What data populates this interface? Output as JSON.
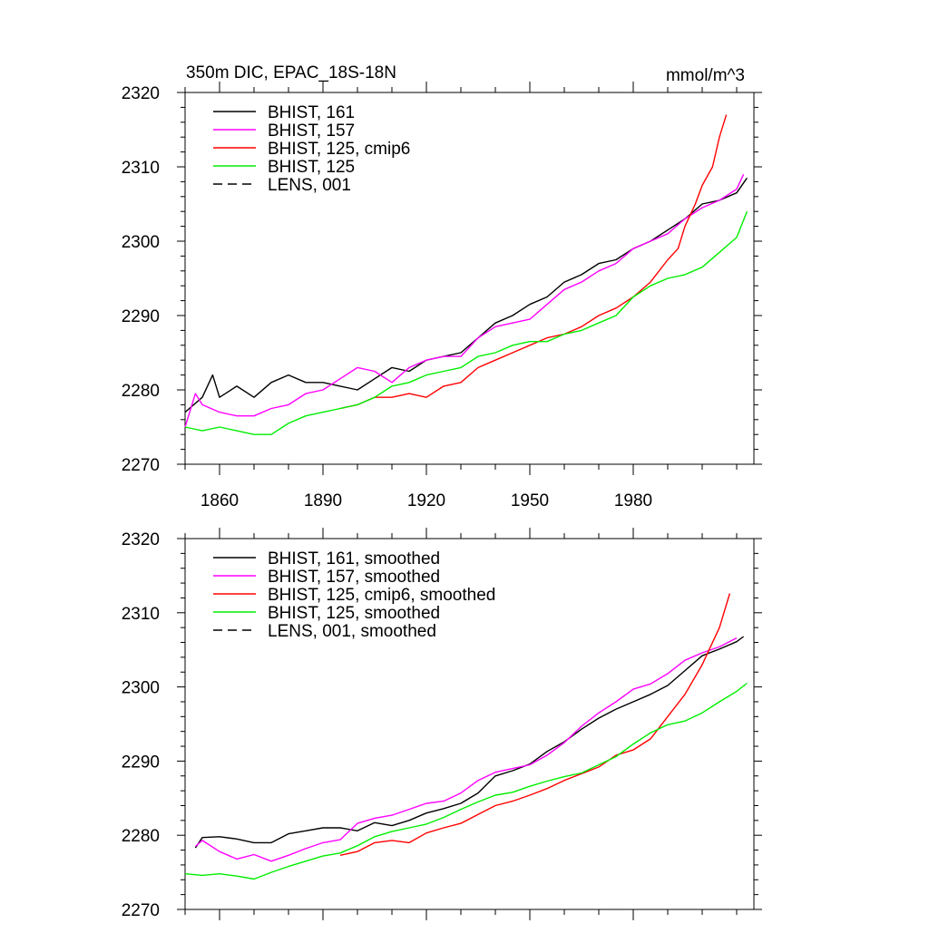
{
  "chart_data": [
    {
      "type": "line",
      "title": "350m DIC, EPAC_18S-18N",
      "units_label": "mmol/m^3",
      "xlim": [
        1850,
        2015
      ],
      "ylim": [
        2270,
        2320
      ],
      "yticks": [
        2270,
        2280,
        2290,
        2300,
        2310,
        2320
      ],
      "yticklabels": [
        "2270",
        "2280",
        "2290",
        "2300",
        "2310",
        "2320"
      ],
      "xticks": [
        1860,
        1890,
        1920,
        1950,
        1980
      ],
      "xticklabels": [
        "1860",
        "1890",
        "1920",
        "1950",
        "1980"
      ],
      "xminor": [
        1850,
        1870,
        1880,
        1900,
        1910,
        1930,
        1940,
        1960,
        1970,
        1990,
        2000,
        2010
      ],
      "legend_position": "top-left",
      "series": [
        {
          "name": "BHIST, 161",
          "color": "#000000",
          "dash": "solid",
          "show_line": true,
          "x": [
            1850,
            1855,
            1858,
            1860,
            1865,
            1870,
            1875,
            1880,
            1885,
            1890,
            1895,
            1900,
            1905,
            1910,
            1915,
            1920,
            1925,
            1930,
            1935,
            1940,
            1945,
            1950,
            1955,
            1960,
            1965,
            1970,
            1975,
            1980,
            1985,
            1990,
            1995,
            2000,
            2005,
            2010,
            2013
          ],
          "y": [
            2277.0,
            2279.0,
            2282.0,
            2279.0,
            2280.5,
            2279.0,
            2281.0,
            2282.0,
            2281.0,
            2281.0,
            2280.5,
            2280.0,
            2281.5,
            2283.0,
            2282.5,
            2284.0,
            2284.5,
            2285.0,
            2287.0,
            2289.0,
            2290.0,
            2291.5,
            2292.5,
            2294.5,
            2295.5,
            2297.0,
            2297.5,
            2299.0,
            2300.0,
            2301.5,
            2303.0,
            2305.0,
            2305.5,
            2306.5,
            2308.5
          ]
        },
        {
          "name": "BHIST, 157",
          "color": "#ff00ff",
          "dash": "solid",
          "show_line": true,
          "x": [
            1850,
            1853,
            1855,
            1860,
            1865,
            1870,
            1875,
            1880,
            1885,
            1890,
            1895,
            1900,
            1905,
            1910,
            1915,
            1920,
            1925,
            1930,
            1935,
            1940,
            1945,
            1950,
            1955,
            1960,
            1965,
            1970,
            1975,
            1980,
            1985,
            1990,
            1995,
            2000,
            2005,
            2010,
            2012
          ],
          "y": [
            2275.0,
            2279.5,
            2278.0,
            2277.0,
            2276.5,
            2276.5,
            2277.5,
            2278.0,
            2279.5,
            2280.0,
            2281.5,
            2283.0,
            2282.5,
            2281.0,
            2283.0,
            2284.0,
            2284.5,
            2284.5,
            2287.0,
            2288.5,
            2289.0,
            2289.5,
            2291.5,
            2293.5,
            2294.5,
            2296.0,
            2297.0,
            2299.0,
            2300.0,
            2301.0,
            2303.0,
            2304.5,
            2305.5,
            2307.0,
            2309.0
          ]
        },
        {
          "name": "BHIST, 125, cmip6",
          "color": "#ff0000",
          "dash": "solid",
          "show_line": true,
          "x": [
            1895,
            1900,
            1905,
            1910,
            1915,
            1920,
            1925,
            1930,
            1935,
            1940,
            1945,
            1950,
            1955,
            1960,
            1965,
            1970,
            1975,
            1980,
            1985,
            1990,
            1993,
            1995,
            1998,
            2000,
            2003,
            2005,
            2007
          ],
          "y": [
            2277.5,
            2278.0,
            2279.0,
            2279.0,
            2279.5,
            2279.0,
            2280.5,
            2281.0,
            2283.0,
            2284.0,
            2285.0,
            2286.0,
            2287.0,
            2287.5,
            2288.5,
            2290.0,
            2291.0,
            2292.5,
            2294.5,
            2297.5,
            2299.0,
            2302.0,
            2305.0,
            2307.5,
            2310.0,
            2314.0,
            2317.0
          ]
        },
        {
          "name": "BHIST, 125",
          "color": "#00ee00",
          "dash": "solid",
          "show_line": true,
          "x": [
            1850,
            1855,
            1860,
            1865,
            1870,
            1875,
            1880,
            1885,
            1890,
            1895,
            1900,
            1905,
            1910,
            1915,
            1920,
            1925,
            1930,
            1935,
            1940,
            1945,
            1950,
            1955,
            1960,
            1965,
            1970,
            1975,
            1980,
            1985,
            1990,
            1995,
            2000,
            2005,
            2010,
            2013
          ],
          "y": [
            2275.0,
            2274.5,
            2275.0,
            2274.5,
            2274.0,
            2274.0,
            2275.5,
            2276.5,
            2277.0,
            2277.5,
            2278.0,
            2279.0,
            2280.5,
            2281.0,
            2282.0,
            2282.5,
            2283.0,
            2284.5,
            2285.0,
            2286.0,
            2286.5,
            2286.5,
            2287.5,
            2288.0,
            2289.0,
            2290.0,
            2292.5,
            2294.0,
            2295.0,
            2295.5,
            2296.5,
            2298.5,
            2300.5,
            2304.0
          ]
        },
        {
          "name": "LENS, 001",
          "color": "#000000",
          "dash": "dashed",
          "show_line": false,
          "x": [],
          "y": []
        }
      ]
    },
    {
      "type": "line",
      "title": "",
      "units_label": "",
      "xlim": [
        1850,
        2015
      ],
      "ylim": [
        2270,
        2320
      ],
      "yticks": [
        2270,
        2280,
        2290,
        2300,
        2310,
        2320
      ],
      "yticklabels": [
        "2270",
        "2280",
        "2290",
        "2300",
        "2310",
        "2320"
      ],
      "xticks": [
        1860,
        1890,
        1920,
        1950,
        1980
      ],
      "xticklabels": [
        "",
        "",
        "",
        "",
        ""
      ],
      "xminor": [
        1850,
        1870,
        1880,
        1900,
        1910,
        1930,
        1940,
        1960,
        1970,
        1990,
        2000,
        2010
      ],
      "legend_position": "top-left",
      "series": [
        {
          "name": "BHIST, 161, smoothed",
          "color": "#000000",
          "dash": "solid",
          "show_line": true,
          "x": [
            1853,
            1855,
            1860,
            1865,
            1870,
            1875,
            1880,
            1885,
            1890,
            1895,
            1900,
            1905,
            1910,
            1915,
            1920,
            1925,
            1930,
            1935,
            1940,
            1945,
            1950,
            1955,
            1960,
            1965,
            1970,
            1975,
            1980,
            1985,
            1990,
            1995,
            2000,
            2005,
            2010,
            2012
          ],
          "y": [
            2278.3,
            2279.7,
            2279.8,
            2279.5,
            2279.0,
            2279.0,
            2280.2,
            2280.6,
            2281.0,
            2281.0,
            2280.6,
            2281.7,
            2281.3,
            2282.0,
            2283.0,
            2283.6,
            2284.3,
            2285.7,
            2288.0,
            2288.7,
            2289.6,
            2291.3,
            2292.6,
            2294.3,
            2295.8,
            2297.0,
            2298.0,
            2299.0,
            2300.2,
            2302.2,
            2304.2,
            2305.1,
            2306.1,
            2306.8
          ]
        },
        {
          "name": "BHIST, 157, smoothed",
          "color": "#ff00ff",
          "dash": "solid",
          "show_line": true,
          "x": [
            1853,
            1855,
            1860,
            1865,
            1870,
            1875,
            1880,
            1885,
            1890,
            1895,
            1900,
            1905,
            1910,
            1915,
            1920,
            1925,
            1930,
            1935,
            1940,
            1945,
            1950,
            1955,
            1960,
            1965,
            1970,
            1975,
            1980,
            1985,
            1990,
            1995,
            2000,
            2005,
            2010
          ],
          "y": [
            2278.5,
            2279.3,
            2277.8,
            2276.8,
            2277.4,
            2276.5,
            2277.3,
            2278.2,
            2279.0,
            2279.4,
            2281.6,
            2282.3,
            2282.7,
            2283.5,
            2284.3,
            2284.6,
            2285.7,
            2287.4,
            2288.5,
            2289.0,
            2289.5,
            2290.8,
            2292.5,
            2294.7,
            2296.5,
            2298.0,
            2299.7,
            2300.4,
            2301.8,
            2303.6,
            2304.6,
            2305.4,
            2306.6
          ]
        },
        {
          "name": "BHIST, 125, cmip6, smoothed",
          "color": "#ff0000",
          "dash": "solid",
          "show_line": true,
          "x": [
            1895,
            1900,
            1905,
            1910,
            1915,
            1920,
            1925,
            1930,
            1935,
            1940,
            1945,
            1950,
            1955,
            1960,
            1965,
            1970,
            1975,
            1980,
            1985,
            1990,
            1995,
            2000,
            2005,
            2008
          ],
          "y": [
            2277.3,
            2277.8,
            2279.0,
            2279.3,
            2279.0,
            2280.3,
            2281.0,
            2281.6,
            2282.8,
            2284.0,
            2284.6,
            2285.4,
            2286.3,
            2287.4,
            2288.3,
            2289.2,
            2290.8,
            2291.5,
            2293.0,
            2296.0,
            2299.0,
            2303.0,
            2308.0,
            2312.6
          ]
        },
        {
          "name": "BHIST, 125, smoothed",
          "color": "#00ee00",
          "dash": "solid",
          "show_line": true,
          "x": [
            1850,
            1855,
            1860,
            1865,
            1870,
            1875,
            1880,
            1885,
            1890,
            1895,
            1900,
            1905,
            1910,
            1915,
            1920,
            1925,
            1930,
            1935,
            1940,
            1945,
            1950,
            1955,
            1960,
            1965,
            1970,
            1975,
            1980,
            1985,
            1990,
            1995,
            2000,
            2005,
            2010,
            2013
          ],
          "y": [
            2274.8,
            2274.6,
            2274.8,
            2274.5,
            2274.1,
            2275.0,
            2275.8,
            2276.5,
            2277.2,
            2277.6,
            2278.6,
            2279.8,
            2280.5,
            2281.0,
            2281.5,
            2282.4,
            2283.5,
            2284.5,
            2285.4,
            2285.8,
            2286.6,
            2287.3,
            2287.9,
            2288.4,
            2289.5,
            2290.6,
            2292.3,
            2293.8,
            2294.9,
            2295.4,
            2296.5,
            2298.0,
            2299.4,
            2300.5
          ]
        },
        {
          "name": "LENS, 001, smoothed",
          "color": "#000000",
          "dash": "dashed",
          "show_line": false,
          "x": [],
          "y": []
        }
      ]
    }
  ]
}
